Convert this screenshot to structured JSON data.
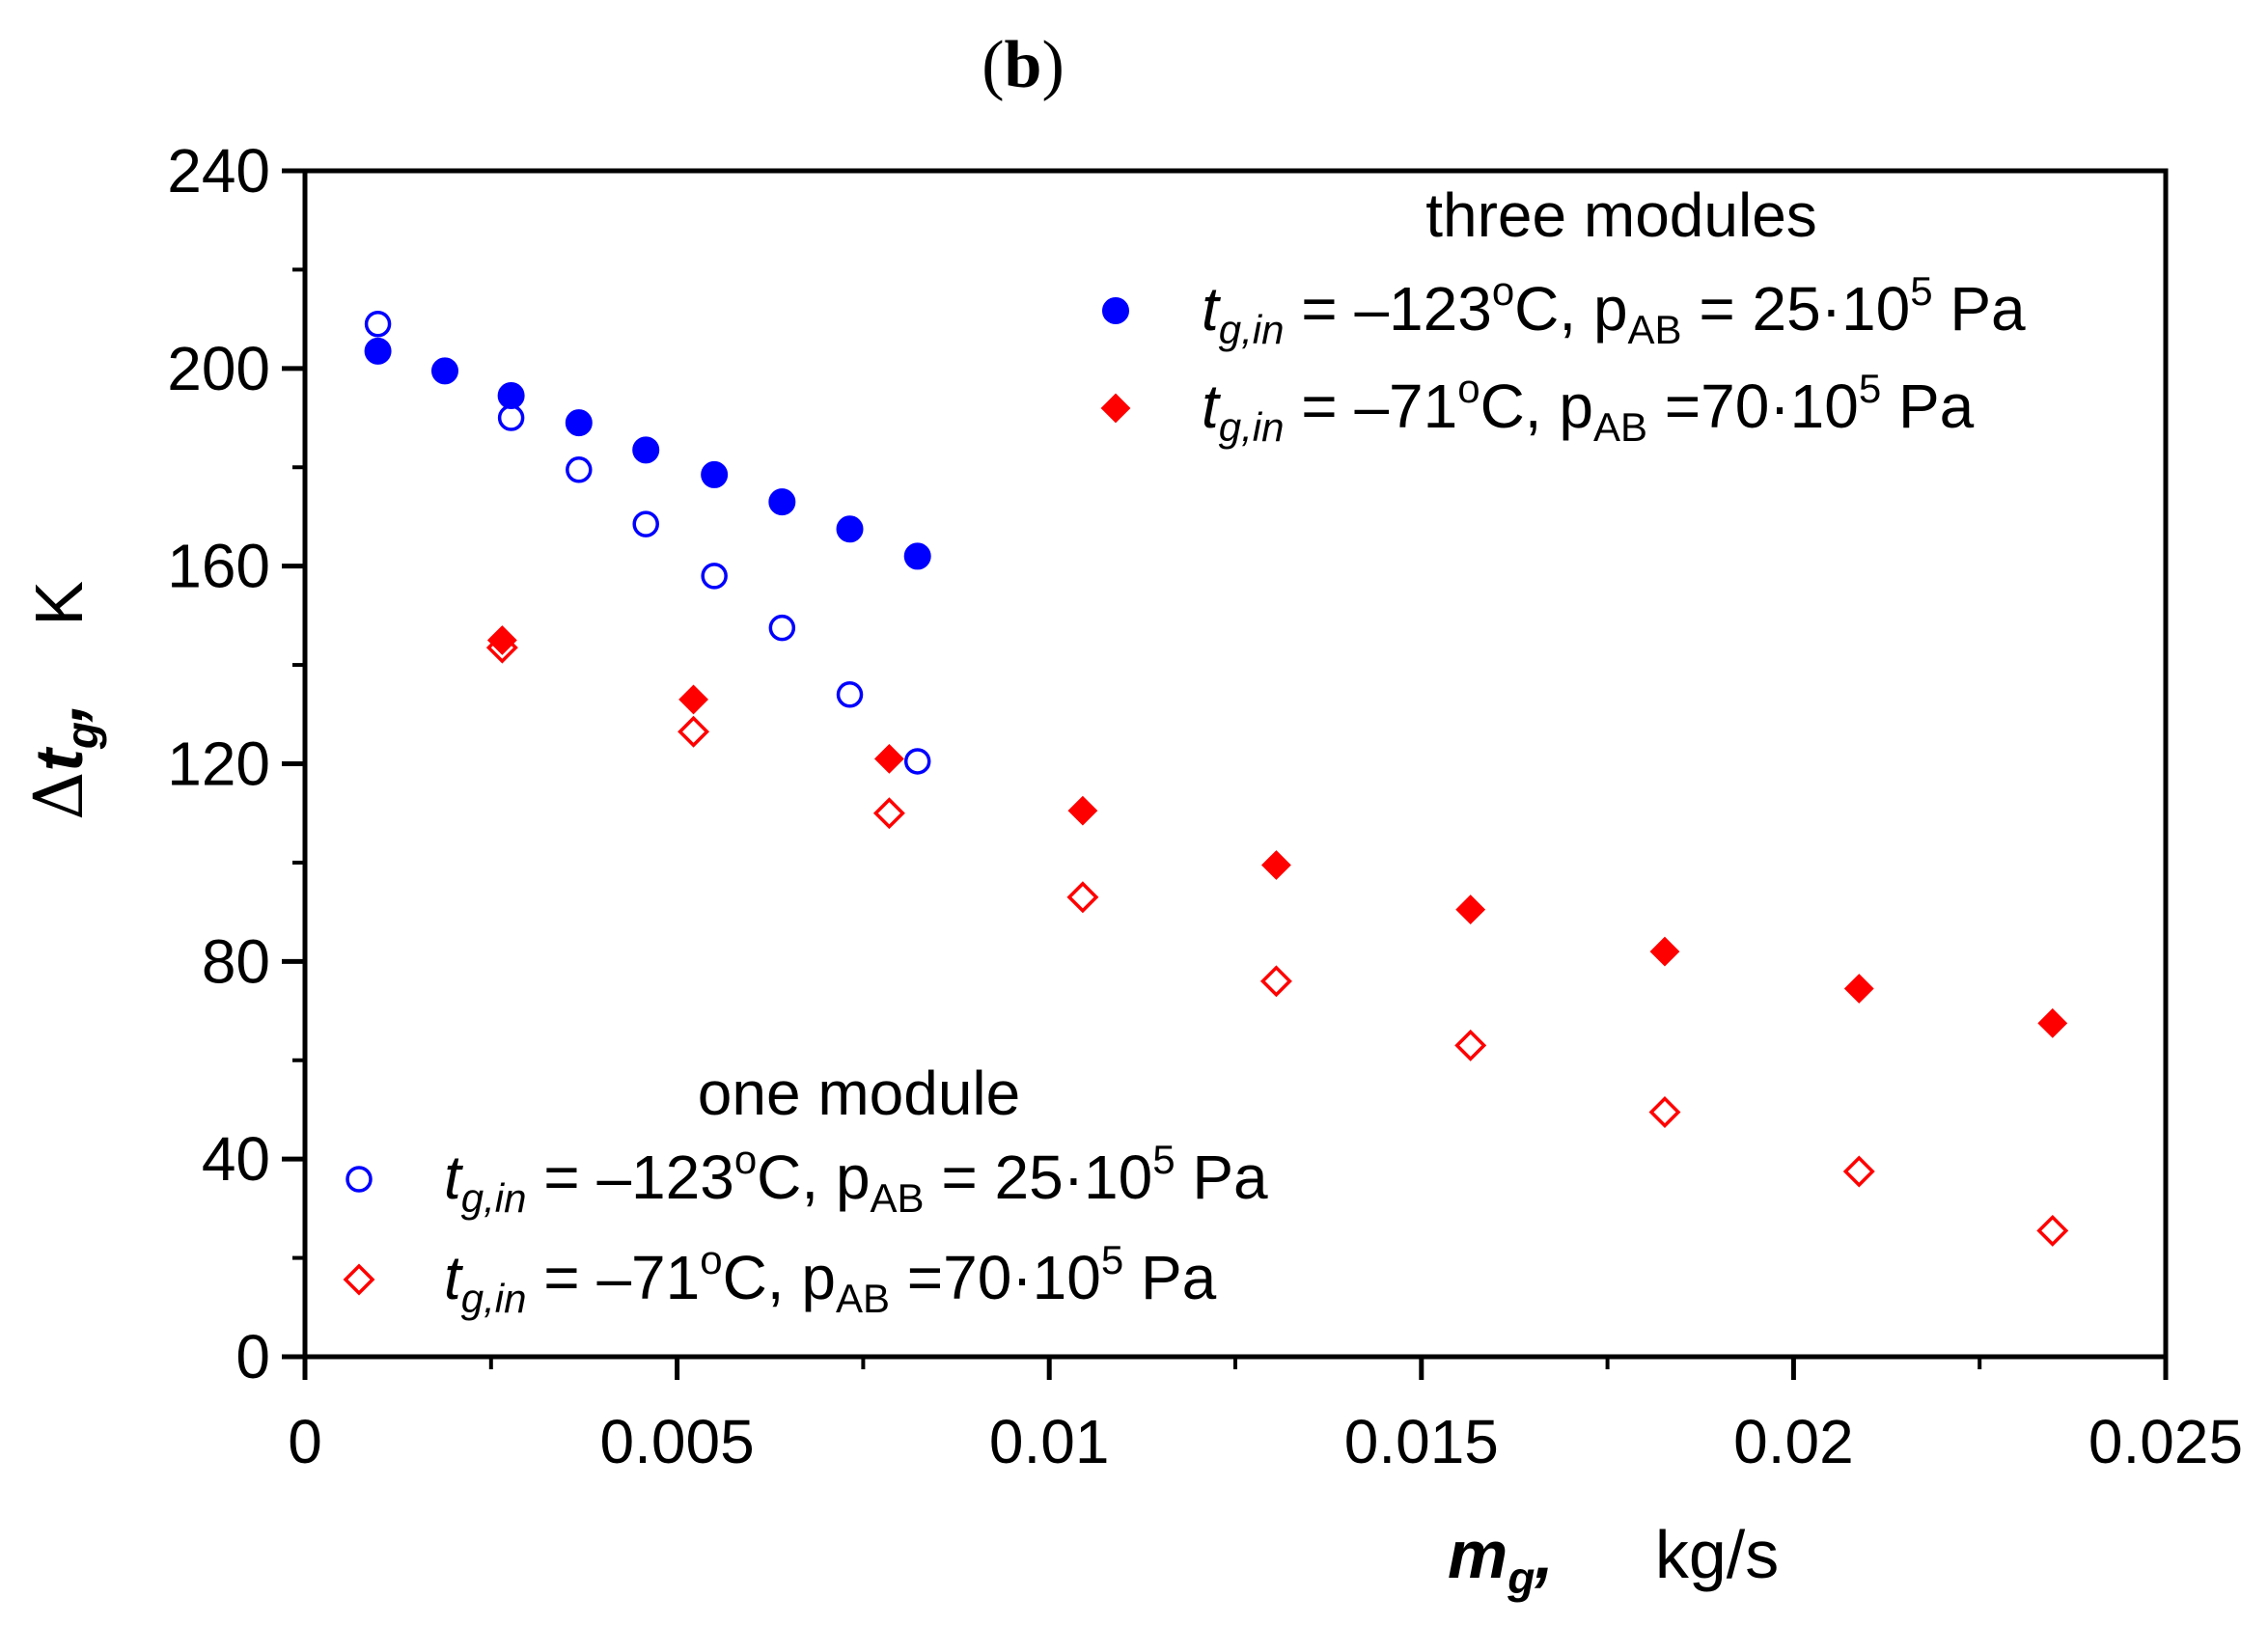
{
  "chart_data": {
    "type": "scatter",
    "title": "(b)",
    "xlabel": "m_g, kg/s",
    "ylabel": "Δt_g, K",
    "xlabel_parts": {
      "var": "m",
      "sub": "g",
      "sep": ",",
      "unit": "kg/s"
    },
    "ylabel_parts": {
      "delta": "Δ",
      "var": "t",
      "sub": "g",
      "sep": ",",
      "unit": "K"
    },
    "xlim": [
      0,
      0.025
    ],
    "ylim": [
      0,
      240
    ],
    "x_ticks": [
      0,
      0.005,
      0.01,
      0.015,
      0.02,
      0.025
    ],
    "x_tick_labels": [
      "0",
      "0.005",
      "0.01",
      "0.015",
      "0.02",
      "0.025"
    ],
    "y_ticks": [
      0,
      40,
      80,
      120,
      160,
      200,
      240
    ],
    "y_tick_labels": [
      "0",
      "40",
      "80",
      "120",
      "160",
      "200",
      "240"
    ],
    "grid": false,
    "series": [
      {
        "name": "three modules: tg,in = −123°C, pAB = 25·10^5 Pa",
        "group": "three modules",
        "marker": "circle-filled",
        "color": "#0000ff",
        "x": [
          0.00098,
          0.00188,
          0.00277,
          0.00368,
          0.00458,
          0.0055,
          0.00641,
          0.00732,
          0.00823
        ],
        "y": [
          203.5,
          199.5,
          194.5,
          189.0,
          183.5,
          178.5,
          173.0,
          167.5,
          162.0
        ]
      },
      {
        "name": "three modules: tg,in = −71°C, pAB = 70·10^5 Pa",
        "group": "three modules",
        "marker": "diamond-filled",
        "color": "#ff0000",
        "x": [
          0.00265,
          0.00522,
          0.00785,
          0.01045,
          0.01305,
          0.01566,
          0.01827,
          0.02088,
          0.02348
        ],
        "y": [
          145.0,
          133.0,
          121.0,
          110.5,
          99.5,
          90.5,
          82.0,
          74.5,
          67.5
        ]
      },
      {
        "name": "one module: tg,in = −123°C, pAB = 25·10^5 Pa",
        "group": "one module",
        "marker": "circle-open",
        "color": "#0000ff",
        "x": [
          0.00098,
          0.00277,
          0.00368,
          0.00458,
          0.0055,
          0.00641,
          0.00732,
          0.00823
        ],
        "y": [
          209.0,
          190.0,
          179.5,
          168.5,
          158.0,
          147.5,
          134.0,
          120.5
        ]
      },
      {
        "name": "one module: tg,in = −71°C, pAB = 70·10^5 Pa",
        "group": "one module",
        "marker": "diamond-open",
        "color": "#ff0000",
        "x": [
          0.00265,
          0.00522,
          0.00785,
          0.01045,
          0.01305,
          0.01566,
          0.01827,
          0.02088,
          0.02348
        ],
        "y": [
          143.5,
          126.5,
          110.0,
          93.0,
          76.0,
          63.0,
          49.5,
          37.5,
          25.5
        ]
      }
    ],
    "legends": [
      {
        "heading": "three modules",
        "placement": "top-right",
        "entries": [
          {
            "marker": "circle-filled",
            "color": "#0000ff",
            "var": "t",
            "sub": "g,in",
            "mid": " = –123",
            "sup1": "o",
            "c": "C, p",
            "psub": "AB",
            "rest": " = 25·10",
            "sup2": "5",
            "tail": " Pa"
          },
          {
            "marker": "diamond-filled",
            "color": "#ff0000",
            "var": "t",
            "sub": "g,in",
            "mid": " = –71",
            "sup1": "o",
            "c": "C, p",
            "psub": "AB",
            "rest": " =70·10",
            "sup2": "5",
            "tail": " Pa"
          }
        ]
      },
      {
        "heading": "one module",
        "placement": "bottom-left",
        "entries": [
          {
            "marker": "circle-open",
            "color": "#0000ff",
            "var": "t",
            "sub": "g,in",
            "mid": " = –123",
            "sup1": "o",
            "c": "C, p",
            "psub": "AB",
            "rest": " = 25·10",
            "sup2": "5",
            "tail": " Pa"
          },
          {
            "marker": "diamond-open",
            "color": "#ff0000",
            "var": "t",
            "sub": "g,in",
            "mid": " = –71",
            "sup1": "o",
            "c": "C, p",
            "psub": "AB",
            "rest": " =70·10",
            "sup2": "5",
            "tail": " Pa"
          }
        ]
      }
    ]
  }
}
